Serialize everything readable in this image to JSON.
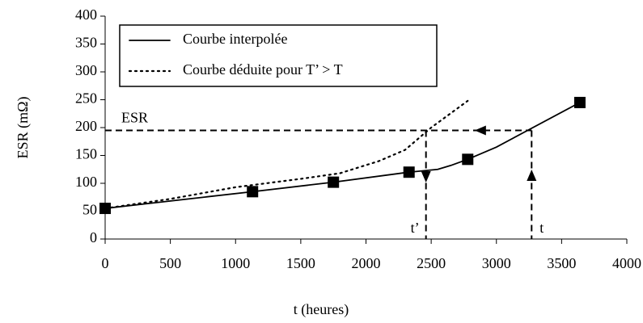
{
  "chart_data": {
    "type": "line",
    "xlabel": "t (heures)",
    "ylabel": "ESR (mΩ)",
    "xlim": [
      0,
      4000
    ],
    "xticks": [
      0,
      500,
      1000,
      1500,
      2000,
      2500,
      3000,
      3500,
      4000
    ],
    "ylim": [
      0,
      400
    ],
    "yticks": [
      0,
      50,
      100,
      150,
      200,
      250,
      300,
      350,
      400
    ],
    "grid": false,
    "legend": "upper left",
    "series": [
      {
        "name": "Courbe interpolée",
        "color": "#000000",
        "style": "solid",
        "x": [
          0,
          1130,
          1750,
          2330,
          2550,
          2650,
          2780,
          3000,
          3640
        ],
        "values": [
          55,
          85,
          102,
          120,
          125,
          132,
          143,
          165,
          245
        ],
        "markers": [
          true,
          true,
          true,
          true,
          false,
          false,
          true,
          false,
          true
        ]
      },
      {
        "name": "Courbe déduite pour T’ > T",
        "color": "#000000",
        "style": "dotted",
        "x": [
          0,
          500,
          1000,
          1500,
          1800,
          2100,
          2300,
          2500,
          2780
        ],
        "values": [
          55,
          72,
          93,
          108,
          118,
          140,
          160,
          200,
          248
        ]
      }
    ],
    "reference": {
      "label": "ESR",
      "value": 195
    },
    "time_marks": [
      {
        "label": "t’",
        "value": 2460
      },
      {
        "label": "t",
        "value": 3270
      }
    ]
  }
}
